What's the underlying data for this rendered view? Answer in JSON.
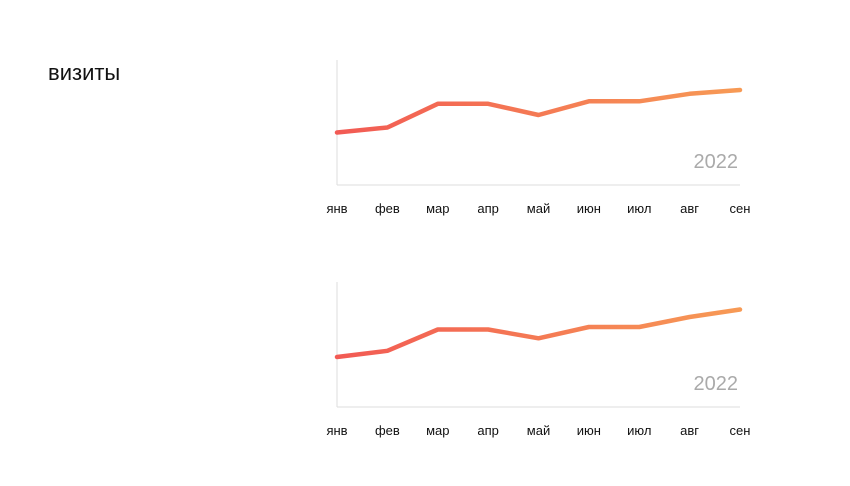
{
  "page": {
    "title": "визиты"
  },
  "colors": {
    "line_start": "#f25a54",
    "line_end": "#f79a55",
    "axis": "#dddddd",
    "year_text": "#aaaaaa"
  },
  "chart_data": [
    {
      "type": "line",
      "categories": [
        "янв",
        "фев",
        "мар",
        "апр",
        "май",
        "июн",
        "июл",
        "авг",
        "сен"
      ],
      "series": [
        {
          "values": [
            42,
            46,
            65,
            65,
            56,
            67,
            67,
            73,
            76
          ]
        }
      ],
      "annotation": "2022",
      "ylim": [
        0,
        100
      ],
      "grid": false,
      "axes": [
        "left",
        "bottom"
      ],
      "gradient": true
    },
    {
      "type": "line",
      "categories": [
        "янв",
        "фев",
        "мар",
        "апр",
        "май",
        "июн",
        "июл",
        "авг",
        "сен"
      ],
      "series": [
        {
          "values": [
            40,
            45,
            62,
            62,
            55,
            64,
            64,
            72,
            78
          ]
        }
      ],
      "annotation": "2022",
      "ylim": [
        0,
        100
      ],
      "grid": false,
      "axes": [
        "left",
        "bottom"
      ],
      "gradient": true
    }
  ]
}
